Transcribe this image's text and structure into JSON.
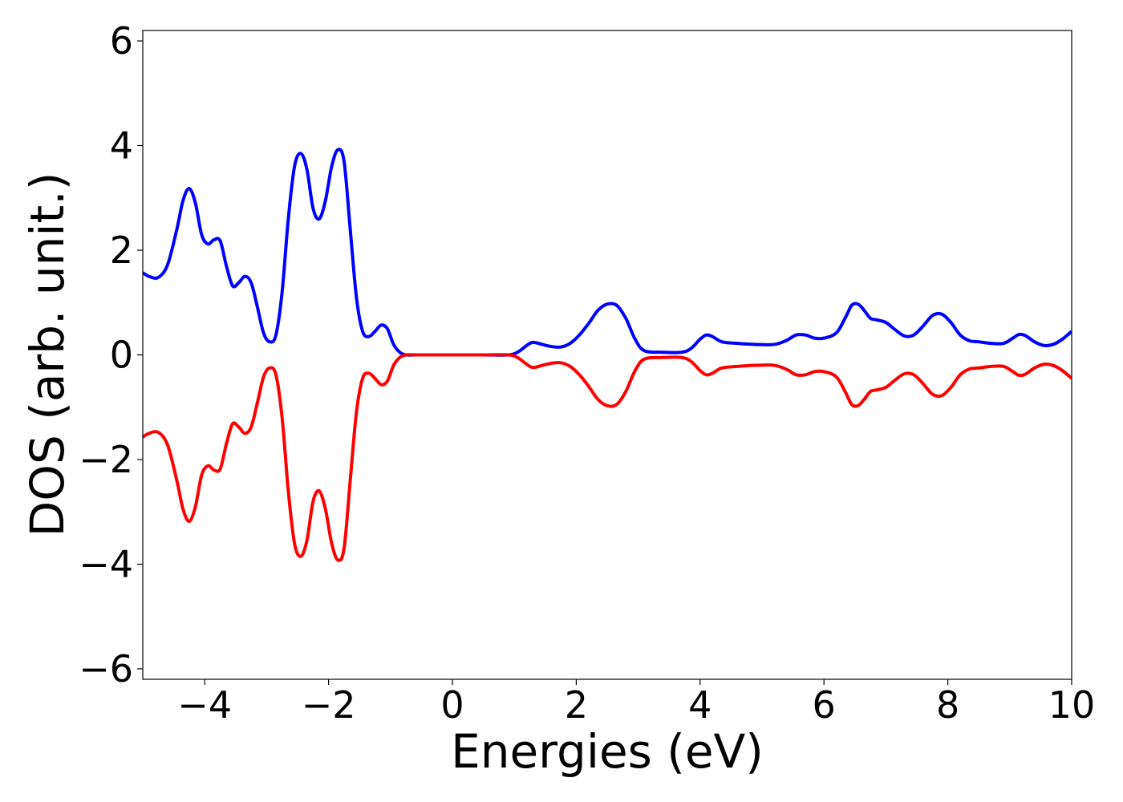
{
  "chart_data": {
    "type": "line",
    "title": "",
    "xlabel": "Energies (eV)",
    "ylabel": "DOS (arb. unit.)",
    "xlim": [
      -5,
      10
    ],
    "ylim": [
      -6.2,
      6.2
    ],
    "xticks": [
      -4,
      -2,
      0,
      2,
      4,
      6,
      8,
      10
    ],
    "xtick_labels": [
      "−4",
      "−2",
      "0",
      "2",
      "4",
      "6",
      "8",
      "10"
    ],
    "yticks": [
      -6,
      -4,
      -2,
      0,
      2,
      4,
      6
    ],
    "ytick_labels": [
      "−6",
      "−4",
      "−2",
      "0",
      "2",
      "4",
      "6"
    ],
    "grid": false,
    "legend": "none",
    "series": [
      {
        "color": "#0000ff",
        "x": [
          -5.0,
          -4.9,
          -4.75,
          -4.6,
          -4.45,
          -4.35,
          -4.25,
          -4.15,
          -4.05,
          -3.95,
          -3.85,
          -3.75,
          -3.65,
          -3.55,
          -3.45,
          -3.35,
          -3.25,
          -3.15,
          -3.05,
          -2.95,
          -2.85,
          -2.75,
          -2.65,
          -2.55,
          -2.45,
          -2.35,
          -2.25,
          -2.15,
          -2.05,
          -1.95,
          -1.85,
          -1.75,
          -1.65,
          -1.55,
          -1.45,
          -1.35,
          -1.25,
          -1.15,
          -1.05,
          -0.95,
          -0.85,
          -0.75,
          -0.6,
          -0.5,
          -0.3,
          0.0,
          0.5,
          0.9,
          1.05,
          1.2,
          1.3,
          1.45,
          1.6,
          1.75,
          1.9,
          2.05,
          2.2,
          2.35,
          2.5,
          2.65,
          2.8,
          2.95,
          3.1,
          3.4,
          3.7,
          3.85,
          4.0,
          4.1,
          4.2,
          4.35,
          4.6,
          4.9,
          5.2,
          5.4,
          5.55,
          5.7,
          5.85,
          6.0,
          6.2,
          6.35,
          6.45,
          6.55,
          6.65,
          6.75,
          6.85,
          7.0,
          7.15,
          7.3,
          7.45,
          7.6,
          7.75,
          7.9,
          8.05,
          8.2,
          8.35,
          8.5,
          8.7,
          8.9,
          9.05,
          9.15,
          9.25,
          9.4,
          9.55,
          9.7,
          9.85,
          10.0
        ],
        "y": [
          1.57,
          1.5,
          1.48,
          1.72,
          2.4,
          2.95,
          3.18,
          2.9,
          2.3,
          2.12,
          2.2,
          2.18,
          1.7,
          1.32,
          1.38,
          1.5,
          1.38,
          0.92,
          0.42,
          0.25,
          0.38,
          1.2,
          2.6,
          3.6,
          3.85,
          3.55,
          2.8,
          2.6,
          2.95,
          3.6,
          3.92,
          3.7,
          2.4,
          1.1,
          0.45,
          0.35,
          0.45,
          0.57,
          0.5,
          0.2,
          0.05,
          0.0,
          0.0,
          0.0,
          0.0,
          0.0,
          0.0,
          0.0,
          0.05,
          0.18,
          0.24,
          0.2,
          0.16,
          0.15,
          0.22,
          0.38,
          0.6,
          0.85,
          0.97,
          0.95,
          0.7,
          0.3,
          0.08,
          0.05,
          0.05,
          0.12,
          0.3,
          0.38,
          0.35,
          0.25,
          0.22,
          0.2,
          0.2,
          0.28,
          0.38,
          0.38,
          0.32,
          0.32,
          0.42,
          0.72,
          0.95,
          0.97,
          0.85,
          0.7,
          0.67,
          0.62,
          0.48,
          0.36,
          0.38,
          0.55,
          0.75,
          0.78,
          0.62,
          0.38,
          0.27,
          0.25,
          0.22,
          0.22,
          0.32,
          0.39,
          0.37,
          0.25,
          0.18,
          0.2,
          0.3,
          0.45
        ]
      },
      {
        "color": "#ff0000",
        "x": [
          -5.0,
          -4.9,
          -4.75,
          -4.6,
          -4.45,
          -4.35,
          -4.25,
          -4.15,
          -4.05,
          -3.95,
          -3.85,
          -3.75,
          -3.65,
          -3.55,
          -3.45,
          -3.35,
          -3.25,
          -3.15,
          -3.05,
          -2.95,
          -2.85,
          -2.75,
          -2.65,
          -2.55,
          -2.45,
          -2.35,
          -2.25,
          -2.15,
          -2.05,
          -1.95,
          -1.85,
          -1.75,
          -1.65,
          -1.55,
          -1.45,
          -1.35,
          -1.25,
          -1.15,
          -1.05,
          -0.95,
          -0.85,
          -0.75,
          -0.6,
          -0.5,
          -0.3,
          0.0,
          0.5,
          0.9,
          1.05,
          1.2,
          1.3,
          1.45,
          1.6,
          1.75,
          1.9,
          2.05,
          2.2,
          2.35,
          2.5,
          2.65,
          2.8,
          2.95,
          3.1,
          3.4,
          3.7,
          3.85,
          4.0,
          4.1,
          4.2,
          4.35,
          4.6,
          4.9,
          5.2,
          5.4,
          5.55,
          5.7,
          5.85,
          6.0,
          6.2,
          6.35,
          6.45,
          6.55,
          6.65,
          6.75,
          6.85,
          7.0,
          7.15,
          7.3,
          7.45,
          7.6,
          7.75,
          7.9,
          8.05,
          8.2,
          8.35,
          8.5,
          8.7,
          8.9,
          9.05,
          9.15,
          9.25,
          9.4,
          9.55,
          9.7,
          9.85,
          10.0
        ],
        "y": [
          -1.57,
          -1.5,
          -1.48,
          -1.72,
          -2.4,
          -2.95,
          -3.18,
          -2.9,
          -2.3,
          -2.12,
          -2.2,
          -2.18,
          -1.7,
          -1.32,
          -1.38,
          -1.5,
          -1.38,
          -0.92,
          -0.42,
          -0.25,
          -0.38,
          -1.2,
          -2.6,
          -3.6,
          -3.85,
          -3.55,
          -2.8,
          -2.6,
          -2.95,
          -3.6,
          -3.92,
          -3.7,
          -2.4,
          -1.1,
          -0.45,
          -0.35,
          -0.45,
          -0.57,
          -0.5,
          -0.2,
          -0.05,
          0.0,
          0.0,
          0.0,
          0.0,
          0.0,
          0.0,
          0.0,
          -0.05,
          -0.18,
          -0.24,
          -0.2,
          -0.16,
          -0.15,
          -0.22,
          -0.38,
          -0.6,
          -0.85,
          -0.97,
          -0.95,
          -0.7,
          -0.3,
          -0.08,
          -0.05,
          -0.05,
          -0.12,
          -0.3,
          -0.38,
          -0.35,
          -0.25,
          -0.22,
          -0.2,
          -0.2,
          -0.28,
          -0.38,
          -0.38,
          -0.32,
          -0.32,
          -0.42,
          -0.72,
          -0.95,
          -0.97,
          -0.85,
          -0.7,
          -0.67,
          -0.62,
          -0.48,
          -0.36,
          -0.38,
          -0.55,
          -0.75,
          -0.78,
          -0.62,
          -0.38,
          -0.27,
          -0.25,
          -0.22,
          -0.22,
          -0.32,
          -0.39,
          -0.37,
          -0.25,
          -0.18,
          -0.2,
          -0.3,
          -0.45
        ]
      }
    ]
  }
}
